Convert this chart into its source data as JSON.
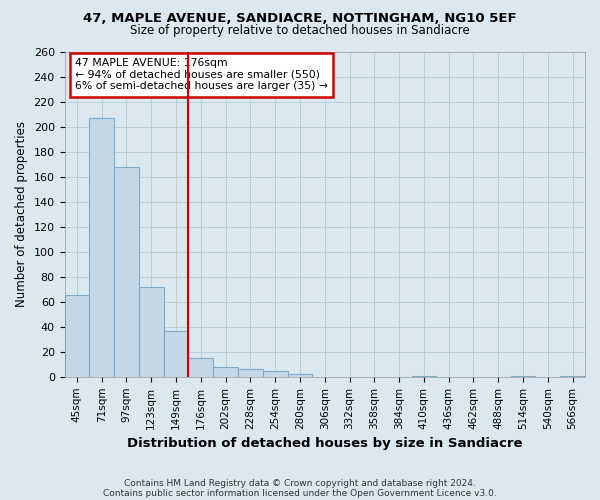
{
  "title1": "47, MAPLE AVENUE, SANDIACRE, NOTTINGHAM, NG10 5EF",
  "title2": "Size of property relative to detached houses in Sandiacre",
  "xlabel": "Distribution of detached houses by size in Sandiacre",
  "ylabel": "Number of detached properties",
  "categories": [
    "45sqm",
    "71sqm",
    "97sqm",
    "123sqm",
    "149sqm",
    "176sqm",
    "202sqm",
    "228sqm",
    "254sqm",
    "280sqm",
    "306sqm",
    "332sqm",
    "358sqm",
    "384sqm",
    "410sqm",
    "436sqm",
    "462sqm",
    "488sqm",
    "514sqm",
    "540sqm",
    "566sqm"
  ],
  "values": [
    65,
    207,
    168,
    72,
    37,
    15,
    8,
    6,
    5,
    2,
    0,
    0,
    0,
    0,
    1,
    0,
    0,
    0,
    1,
    0,
    1
  ],
  "bar_color": "#c5d8e8",
  "bar_edge_color": "#7aabcc",
  "vline_x_index": 5,
  "vline_color": "#cc0000",
  "annotation_title": "47 MAPLE AVENUE: 176sqm",
  "annotation_line1": "← 94% of detached houses are smaller (550)",
  "annotation_line2": "6% of semi-detached houses are larger (35) →",
  "annotation_box_color": "#cc0000",
  "ylim": [
    0,
    260
  ],
  "yticks": [
    0,
    20,
    40,
    60,
    80,
    100,
    120,
    140,
    160,
    180,
    200,
    220,
    240,
    260
  ],
  "footer1": "Contains HM Land Registry data © Crown copyright and database right 2024.",
  "footer2": "Contains public sector information licensed under the Open Government Licence v3.0.",
  "bg_color": "#dce8f0",
  "plot_bg_color": "#dce8f0",
  "grid_color": "#b8cfe0"
}
